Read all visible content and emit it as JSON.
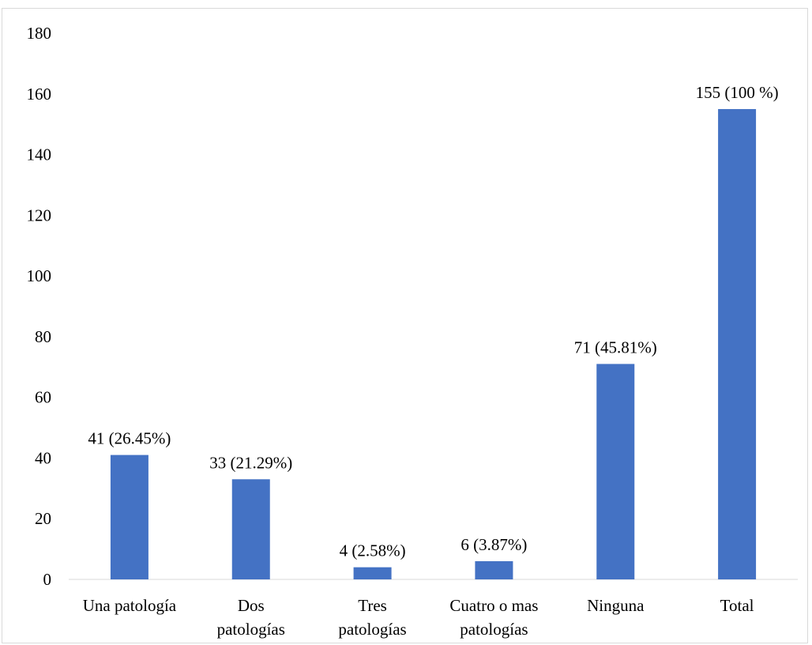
{
  "chart_data": {
    "type": "bar",
    "title": "",
    "xlabel": "",
    "ylabel": "",
    "ylim": [
      0,
      180
    ],
    "yticks": [
      0,
      20,
      40,
      60,
      80,
      100,
      120,
      140,
      160,
      180
    ],
    "grid": false,
    "legend": "none",
    "bar_color": "#4472c4",
    "categories": [
      [
        "Una patología"
      ],
      [
        "Dos",
        "patologías"
      ],
      [
        "Tres",
        "patologías"
      ],
      [
        "Cuatro o mas",
        "patologías"
      ],
      [
        "Ninguna"
      ],
      [
        "Total"
      ]
    ],
    "values": [
      41,
      33,
      4,
      6,
      71,
      155
    ],
    "data_labels": [
      "41 (26.45%)",
      "33 (21.29%)",
      "4 (2.58%)",
      "6 (3.87%)",
      "71 (45.81%)",
      "155 (100 %)"
    ]
  }
}
